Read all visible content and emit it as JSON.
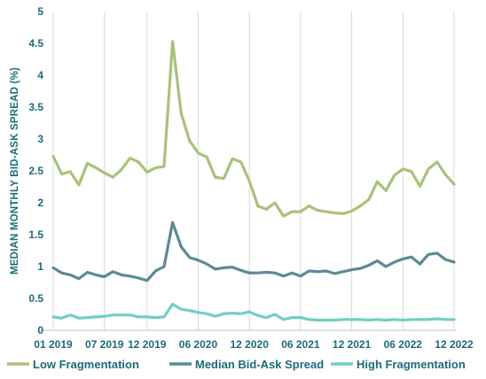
{
  "chart_data": {
    "type": "line",
    "title": "",
    "ylabel": "MEDIAN MONTHLY BID-ASK SPREAD (%)",
    "xlabel": "",
    "ylim": [
      0,
      5
    ],
    "yticks": [
      "0",
      "0.5",
      "1",
      "1.5",
      "2",
      "2.5",
      "3",
      "3.5",
      "4",
      "4.5",
      "5"
    ],
    "x_tick_labels": [
      "01 2019",
      "07 2019",
      "12 2019",
      "06 2020",
      "12 2020",
      "06 2021",
      "12 2021",
      "06 2022",
      "12 2022"
    ],
    "x": [
      "01 2019",
      "02 2019",
      "03 2019",
      "04 2019",
      "05 2019",
      "06 2019",
      "07 2019",
      "08 2019",
      "09 2019",
      "10 2019",
      "11 2019",
      "12 2019",
      "01 2020",
      "02 2020",
      "03 2020",
      "04 2020",
      "05 2020",
      "06 2020",
      "07 2020",
      "08 2020",
      "09 2020",
      "10 2020",
      "11 2020",
      "12 2020",
      "01 2021",
      "02 2021",
      "03 2021",
      "04 2021",
      "05 2021",
      "06 2021",
      "07 2021",
      "08 2021",
      "09 2021",
      "10 2021",
      "11 2021",
      "12 2021",
      "01 2022",
      "02 2022",
      "03 2022",
      "04 2022",
      "05 2022",
      "06 2022",
      "07 2022",
      "08 2022",
      "09 2022",
      "10 2022",
      "11 2022",
      "12 2022"
    ],
    "grid": "vertical",
    "legend": "bottom",
    "series": [
      {
        "name": "Low Fragmentation",
        "color": "#a9c27a",
        "values": [
          2.73,
          2.45,
          2.49,
          2.28,
          2.62,
          2.55,
          2.47,
          2.4,
          2.52,
          2.7,
          2.64,
          2.48,
          2.55,
          2.57,
          4.53,
          3.4,
          2.97,
          2.78,
          2.72,
          2.4,
          2.38,
          2.69,
          2.64,
          2.34,
          1.95,
          1.9,
          2.0,
          1.79,
          1.86,
          1.86,
          1.95,
          1.88,
          1.86,
          1.84,
          1.83,
          1.87,
          1.95,
          2.05,
          2.33,
          2.19,
          2.43,
          2.53,
          2.49,
          2.26,
          2.53,
          2.64,
          2.44,
          2.29
        ]
      },
      {
        "name": "Median Bid-Ask Spread",
        "color": "#5e8996",
        "values": [
          0.98,
          0.9,
          0.87,
          0.81,
          0.91,
          0.87,
          0.84,
          0.92,
          0.87,
          0.85,
          0.82,
          0.78,
          0.93,
          1.0,
          1.69,
          1.31,
          1.14,
          1.1,
          1.04,
          0.96,
          0.98,
          0.99,
          0.94,
          0.9,
          0.9,
          0.91,
          0.9,
          0.85,
          0.9,
          0.85,
          0.93,
          0.92,
          0.93,
          0.89,
          0.92,
          0.95,
          0.97,
          1.02,
          1.09,
          1.0,
          1.07,
          1.12,
          1.15,
          1.04,
          1.19,
          1.21,
          1.11,
          1.07
        ]
      },
      {
        "name": "High Fragmentation",
        "color": "#6fd0c4",
        "values": [
          0.21,
          0.19,
          0.24,
          0.19,
          0.2,
          0.21,
          0.22,
          0.24,
          0.24,
          0.24,
          0.21,
          0.21,
          0.2,
          0.21,
          0.41,
          0.33,
          0.31,
          0.28,
          0.26,
          0.22,
          0.26,
          0.27,
          0.26,
          0.29,
          0.23,
          0.2,
          0.25,
          0.17,
          0.2,
          0.2,
          0.17,
          0.16,
          0.16,
          0.16,
          0.17,
          0.17,
          0.17,
          0.16,
          0.17,
          0.16,
          0.17,
          0.16,
          0.17,
          0.17,
          0.17,
          0.18,
          0.17,
          0.17
        ]
      }
    ]
  }
}
